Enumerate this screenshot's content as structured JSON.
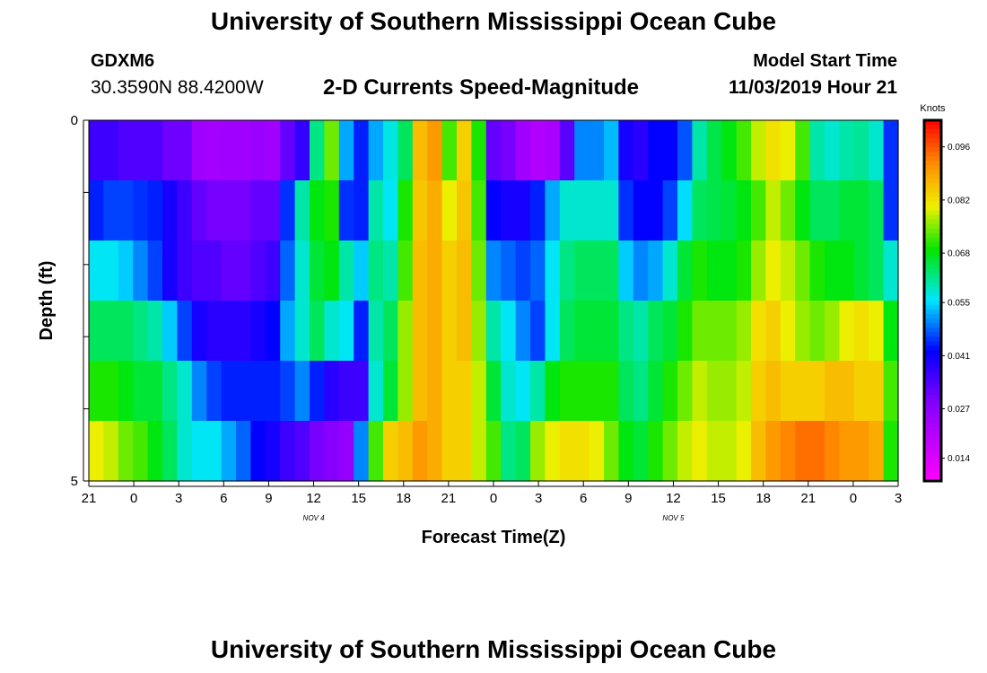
{
  "header": {
    "title": "University of Southern Mississippi Ocean Cube",
    "station_id": "GDXM6",
    "station_location": "30.3590N 88.4200W",
    "chart_title": "2-D Currents Speed-Magnitude",
    "model_start_label": "Model Start Time",
    "model_start_value": "11/03/2019 Hour 21"
  },
  "footer": {
    "title": "University of Southern Mississippi Ocean Cube"
  },
  "chart_data": {
    "type": "heatmap",
    "title": "2-D Currents Speed-Magnitude",
    "xlabel": "Forecast Time(Z)",
    "ylabel": "Depth (ft)",
    "x_ticks": [
      "21",
      "0",
      "3",
      "6",
      "9",
      "12",
      "15",
      "18",
      "21",
      "0",
      "3",
      "6",
      "9",
      "12",
      "15",
      "18",
      "21",
      "0",
      "3"
    ],
    "date_labels": [
      {
        "label": "NOV 4",
        "at_tick": 5
      },
      {
        "label": "NOV 5",
        "at_tick": 13
      }
    ],
    "y_ticks": [
      "0",
      "",
      "",
      "",
      "",
      "5"
    ],
    "ylim": [
      0,
      5
    ],
    "colorbar": {
      "unit": "Knots",
      "range": [
        0.008,
        0.103
      ],
      "tick_labels": [
        "0.096",
        "0.082",
        "0.068",
        "0.055",
        "0.041",
        "0.027",
        "0.014"
      ],
      "tick_values": [
        0.096,
        0.082,
        0.068,
        0.055,
        0.041,
        0.027,
        0.014
      ]
    },
    "rows": [
      {
        "depth_band": "0-1",
        "values": [
          0.036,
          0.036,
          0.034,
          0.034,
          0.034,
          0.031,
          0.031,
          0.024,
          0.023,
          0.024,
          0.024,
          0.025,
          0.024,
          0.032,
          0.037,
          0.062,
          0.074,
          0.052,
          0.044,
          0.052,
          0.057,
          0.064,
          0.086,
          0.09,
          0.072,
          0.084,
          0.07,
          0.032,
          0.03,
          0.024,
          0.021,
          0.022,
          0.033,
          0.05,
          0.05,
          0.053,
          0.04,
          0.038,
          0.042,
          0.042,
          0.047,
          0.06,
          0.065,
          0.068,
          0.072,
          0.078,
          0.082,
          0.08,
          0.072,
          0.06,
          0.058,
          0.06,
          0.061,
          0.058,
          0.045
        ]
      },
      {
        "depth_band": "1-2",
        "values": [
          0.044,
          0.046,
          0.046,
          0.045,
          0.044,
          0.04,
          0.036,
          0.032,
          0.03,
          0.03,
          0.03,
          0.032,
          0.032,
          0.045,
          0.06,
          0.068,
          0.07,
          0.045,
          0.044,
          0.06,
          0.056,
          0.07,
          0.085,
          0.088,
          0.08,
          0.085,
          0.072,
          0.042,
          0.04,
          0.04,
          0.044,
          0.052,
          0.058,
          0.058,
          0.058,
          0.058,
          0.045,
          0.042,
          0.042,
          0.046,
          0.055,
          0.064,
          0.065,
          0.066,
          0.068,
          0.072,
          0.078,
          0.074,
          0.068,
          0.064,
          0.064,
          0.066,
          0.066,
          0.064,
          0.045
        ]
      },
      {
        "depth_band": "2-3",
        "values": [
          0.056,
          0.056,
          0.054,
          0.05,
          0.046,
          0.04,
          0.036,
          0.034,
          0.034,
          0.032,
          0.032,
          0.034,
          0.036,
          0.048,
          0.058,
          0.066,
          0.068,
          0.06,
          0.054,
          0.062,
          0.06,
          0.072,
          0.086,
          0.088,
          0.084,
          0.086,
          0.074,
          0.05,
          0.048,
          0.046,
          0.048,
          0.056,
          0.062,
          0.064,
          0.064,
          0.064,
          0.054,
          0.05,
          0.052,
          0.058,
          0.066,
          0.07,
          0.068,
          0.068,
          0.07,
          0.076,
          0.08,
          0.078,
          0.074,
          0.07,
          0.068,
          0.068,
          0.066,
          0.064,
          0.058
        ]
      },
      {
        "depth_band": "3-4",
        "values": [
          0.064,
          0.064,
          0.064,
          0.062,
          0.06,
          0.054,
          0.046,
          0.04,
          0.038,
          0.038,
          0.038,
          0.04,
          0.042,
          0.052,
          0.058,
          0.064,
          0.058,
          0.056,
          0.044,
          0.06,
          0.064,
          0.076,
          0.086,
          0.088,
          0.084,
          0.086,
          0.076,
          0.06,
          0.056,
          0.05,
          0.046,
          0.056,
          0.064,
          0.066,
          0.066,
          0.066,
          0.062,
          0.06,
          0.064,
          0.066,
          0.07,
          0.074,
          0.074,
          0.074,
          0.076,
          0.082,
          0.084,
          0.08,
          0.076,
          0.074,
          0.076,
          0.08,
          0.082,
          0.08,
          0.068
        ]
      },
      {
        "depth_band": "4-5",
        "values": [
          0.07,
          0.07,
          0.068,
          0.066,
          0.066,
          0.062,
          0.058,
          0.05,
          0.046,
          0.044,
          0.044,
          0.044,
          0.044,
          0.046,
          0.05,
          0.044,
          0.038,
          0.036,
          0.036,
          0.058,
          0.066,
          0.076,
          0.086,
          0.088,
          0.084,
          0.084,
          0.078,
          0.066,
          0.058,
          0.056,
          0.06,
          0.068,
          0.07,
          0.07,
          0.07,
          0.07,
          0.064,
          0.062,
          0.066,
          0.07,
          0.074,
          0.078,
          0.076,
          0.076,
          0.078,
          0.084,
          0.086,
          0.084,
          0.084,
          0.084,
          0.086,
          0.086,
          0.084,
          0.084,
          0.072
        ]
      },
      {
        "depth_band": "5",
        "values": [
          0.08,
          0.078,
          0.074,
          0.072,
          0.068,
          0.064,
          0.058,
          0.056,
          0.056,
          0.052,
          0.048,
          0.042,
          0.04,
          0.036,
          0.034,
          0.03,
          0.028,
          0.026,
          0.05,
          0.072,
          0.084,
          0.086,
          0.09,
          0.088,
          0.084,
          0.084,
          0.078,
          0.072,
          0.062,
          0.064,
          0.076,
          0.08,
          0.082,
          0.082,
          0.08,
          0.074,
          0.068,
          0.066,
          0.07,
          0.074,
          0.078,
          0.08,
          0.078,
          0.078,
          0.08,
          0.086,
          0.09,
          0.092,
          0.094,
          0.094,
          0.092,
          0.09,
          0.09,
          0.088,
          0.07
        ]
      }
    ]
  }
}
